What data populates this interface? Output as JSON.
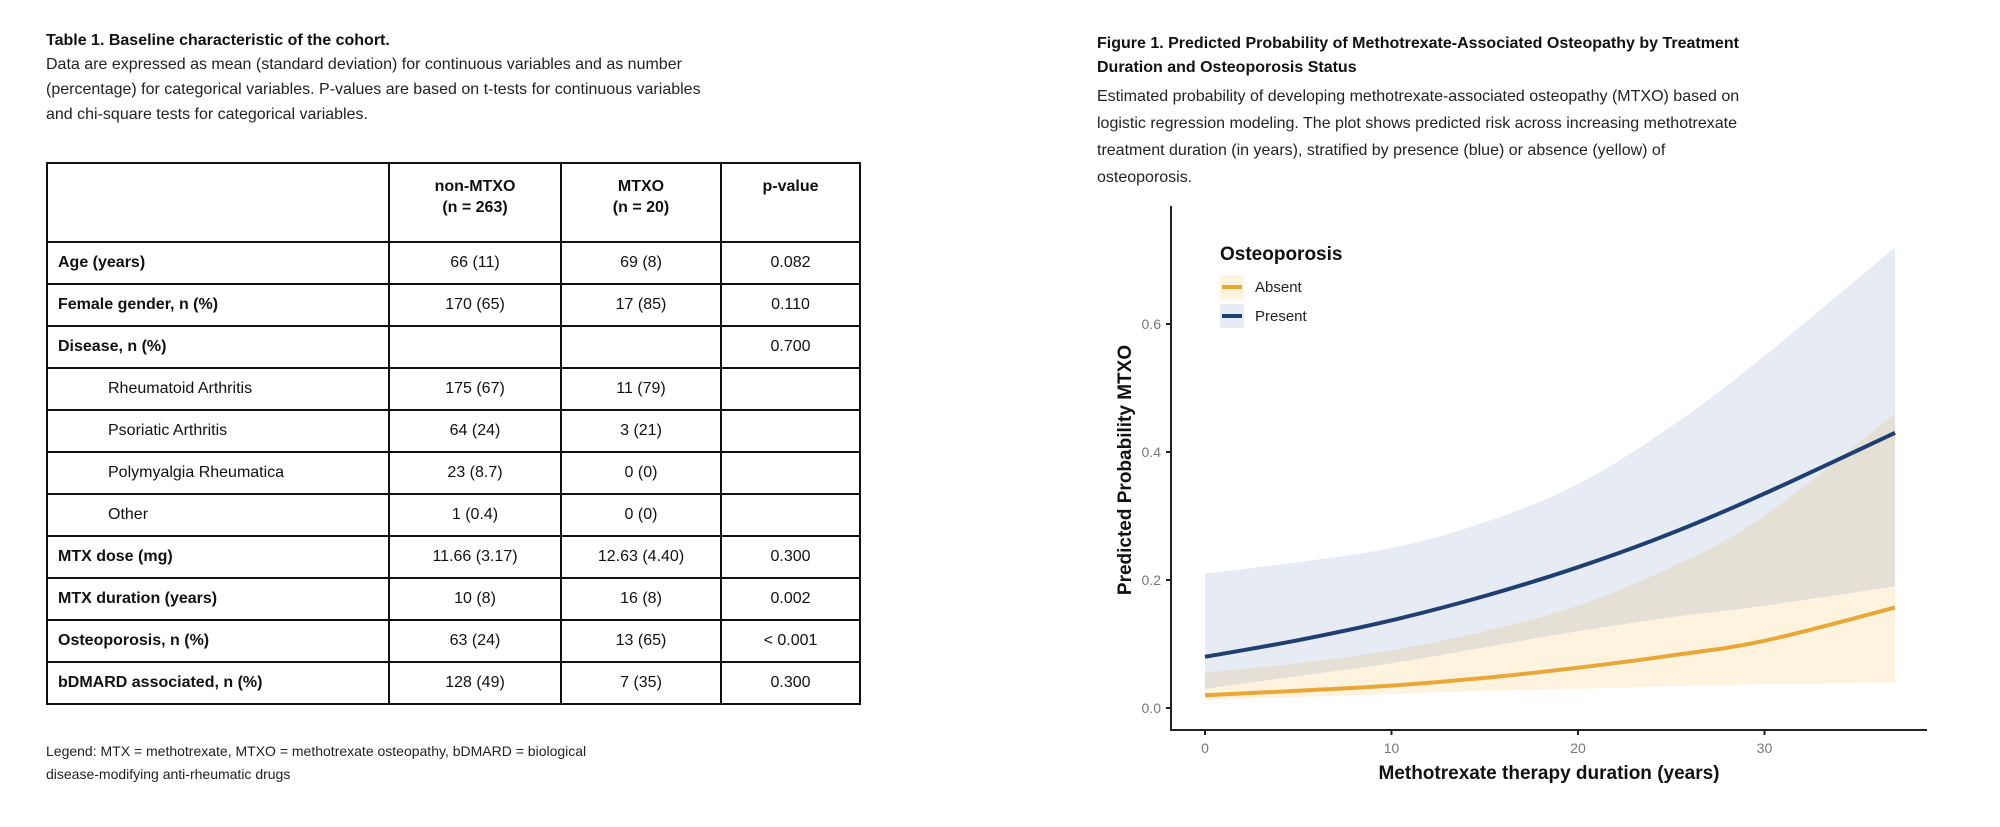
{
  "table": {
    "title": "Table 1. Baseline characteristic of the cohort.",
    "description": [
      "Data are expressed as mean (standard deviation) for continuous variables and as number",
      "(percentage) for categorical variables. P-values are based on t-tests for continuous variables",
      "and chi-square tests for categorical variables."
    ],
    "headers": [
      {
        "line1": "",
        "line2": ""
      },
      {
        "line1": "non-MTXO",
        "line2": "(n = 263)"
      },
      {
        "line1": "MTXO",
        "line2": "(n = 20)"
      },
      {
        "line1": "p-value",
        "line2": ""
      }
    ],
    "rows": [
      {
        "label": "Age (years)",
        "non_mtxo": "66 (11)",
        "mtxo": "69 (8)",
        "p": "0.082",
        "sub": false
      },
      {
        "label": "Female gender, n (%)",
        "non_mtxo": "170 (65)",
        "mtxo": "17 (85)",
        "p": "0.110",
        "sub": false
      },
      {
        "label": "Disease, n (%)",
        "non_mtxo": "",
        "mtxo": "",
        "p": "0.700",
        "sub": false
      },
      {
        "label": "Rheumatoid Arthritis",
        "non_mtxo": "175 (67)",
        "mtxo": "11 (79)",
        "p": "",
        "sub": true
      },
      {
        "label": "Psoriatic Arthritis",
        "non_mtxo": "64 (24)",
        "mtxo": "3 (21)",
        "p": "",
        "sub": true
      },
      {
        "label": "Polymyalgia Rheumatica",
        "non_mtxo": "23 (8.7)",
        "mtxo": "0 (0)",
        "p": "",
        "sub": true
      },
      {
        "label": "Other",
        "non_mtxo": "1 (0.4)",
        "mtxo": "0 (0)",
        "p": "",
        "sub": true
      },
      {
        "label": "MTX dose (mg)",
        "non_mtxo": "11.66 (3.17)",
        "mtxo": "12.63 (4.40)",
        "p": "0.300",
        "sub": false
      },
      {
        "label": "MTX duration (years)",
        "non_mtxo": "10 (8)",
        "mtxo": "16 (8)",
        "p": "0.002",
        "sub": false
      },
      {
        "label": "Osteoporosis, n  (%)",
        "non_mtxo": "63 (24)",
        "mtxo": "13 (65)",
        "p": "< 0.001",
        "sub": false
      },
      {
        "label": "bDMARD associated, n (%)",
        "non_mtxo": "128 (49)",
        "mtxo": "7 (35)",
        "p": "0.300",
        "sub": false
      }
    ],
    "legend": [
      "Legend: MTX = methotrexate, MTXO = methotrexate osteopathy, bDMARD = biological",
      "disease-modifying anti-rheumatic drugs"
    ]
  },
  "figure": {
    "title": [
      "Figure 1. Predicted Probability of Methotrexate-Associated Osteopathy by Treatment",
      "Duration and Osteoporosis Status"
    ],
    "description": [
      "Estimated probability of developing methotrexate-associated osteopathy (MTXO) based on",
      "logistic regression modeling. The plot shows predicted risk across increasing methotrexate",
      "treatment duration (in years), stratified by presence (blue) or absence (yellow) of",
      "osteoporosis."
    ]
  },
  "chart_data": {
    "type": "line",
    "xlabel": "Methotrexate therapy duration (years)",
    "ylabel": "Predicted Probability MTXO",
    "xlim": [
      -3,
      44
    ],
    "ylim": [
      -0.03,
      0.78
    ],
    "xticks": [
      "0",
      "10",
      "20",
      "30"
    ],
    "xtick_values": [
      0,
      10,
      20,
      30
    ],
    "yticks": [
      "0.0",
      "0.2",
      "0.4",
      "0.6"
    ],
    "ytick_values": [
      0,
      0.2,
      0.4,
      0.6
    ],
    "legend_title": "Osteoporosis",
    "legend_position": "top-left",
    "grid": false,
    "x": [
      0,
      5,
      10,
      15,
      20,
      25,
      30,
      37
    ],
    "series": [
      {
        "name": "Absent",
        "color": "#e8a838",
        "band_color": "#fdf3df",
        "values": [
          0.02,
          0.027,
          0.035,
          0.047,
          0.063,
          0.082,
          0.105,
          0.157
        ],
        "lower": [
          0.012,
          0.017,
          0.022,
          0.027,
          0.03,
          0.034,
          0.037,
          0.04
        ],
        "upper": [
          0.055,
          0.07,
          0.09,
          0.12,
          0.16,
          0.22,
          0.3,
          0.46
        ]
      },
      {
        "name": "Present",
        "color": "#1f3f73",
        "band_color": "#e6ebf4",
        "values": [
          0.08,
          0.106,
          0.137,
          0.175,
          0.22,
          0.273,
          0.335,
          0.43
        ],
        "lower": [
          0.03,
          0.05,
          0.07,
          0.095,
          0.12,
          0.142,
          0.16,
          0.19
        ],
        "upper": [
          0.21,
          0.228,
          0.25,
          0.29,
          0.35,
          0.44,
          0.55,
          0.72
        ]
      }
    ]
  }
}
